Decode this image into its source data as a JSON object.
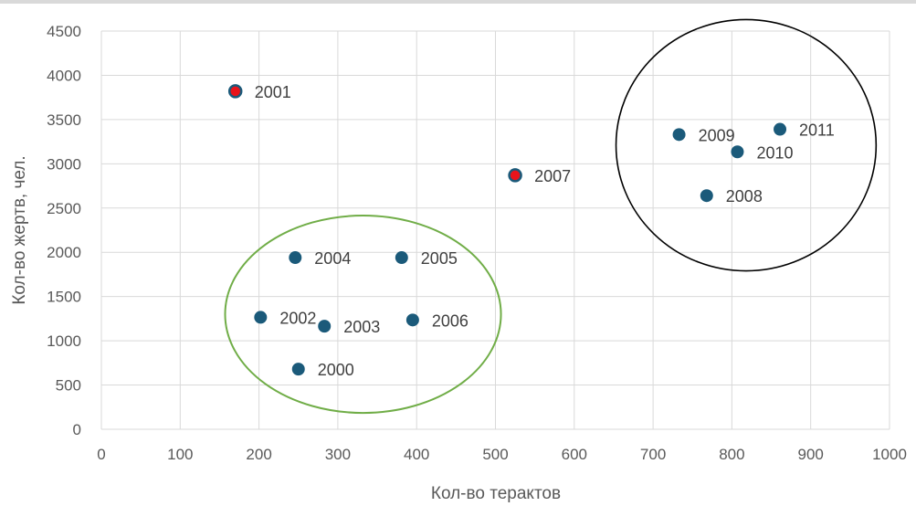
{
  "chart_data": {
    "type": "scatter",
    "xlabel": "Кол-во терактов",
    "ylabel": "Кол-во жертв, чел.",
    "xlim": [
      0,
      1000
    ],
    "ylim": [
      0,
      4500
    ],
    "xticks": [
      0,
      100,
      200,
      300,
      400,
      500,
      600,
      700,
      800,
      900,
      1000
    ],
    "yticks": [
      0,
      500,
      1000,
      1500,
      2000,
      2500,
      3000,
      3500,
      4000,
      4500
    ],
    "grid": true,
    "colors": {
      "point": "#1b5a7a",
      "highlight": "#e8141b",
      "green_circle": "#70ad47",
      "black_circle": "#000000",
      "grid": "#d9d9d9"
    },
    "points": [
      {
        "label": "2000",
        "x": 250,
        "y": 680,
        "highlight": false
      },
      {
        "label": "2001",
        "x": 170,
        "y": 3820,
        "highlight": true
      },
      {
        "label": "2002",
        "x": 202,
        "y": 1265,
        "highlight": false
      },
      {
        "label": "2003",
        "x": 283,
        "y": 1165,
        "highlight": false
      },
      {
        "label": "2004",
        "x": 246,
        "y": 1940,
        "highlight": false
      },
      {
        "label": "2005",
        "x": 381,
        "y": 1940,
        "highlight": false
      },
      {
        "label": "2006",
        "x": 395,
        "y": 1235,
        "highlight": false
      },
      {
        "label": "2007",
        "x": 525,
        "y": 2870,
        "highlight": true
      },
      {
        "label": "2008",
        "x": 768,
        "y": 2640,
        "highlight": false
      },
      {
        "label": "2009",
        "x": 733,
        "y": 3330,
        "highlight": false
      },
      {
        "label": "2010",
        "x": 807,
        "y": 3135,
        "highlight": false
      },
      {
        "label": "2011",
        "x": 861,
        "y": 3390,
        "highlight": false
      }
    ],
    "annotations": [
      {
        "shape": "ellipse",
        "color": "green",
        "cx": 332,
        "cy": 1300,
        "rx": 175,
        "ry": 1115
      },
      {
        "shape": "ellipse",
        "color": "black",
        "cx": 818,
        "cy": 3210,
        "rx": 165,
        "ry": 1420
      }
    ]
  }
}
